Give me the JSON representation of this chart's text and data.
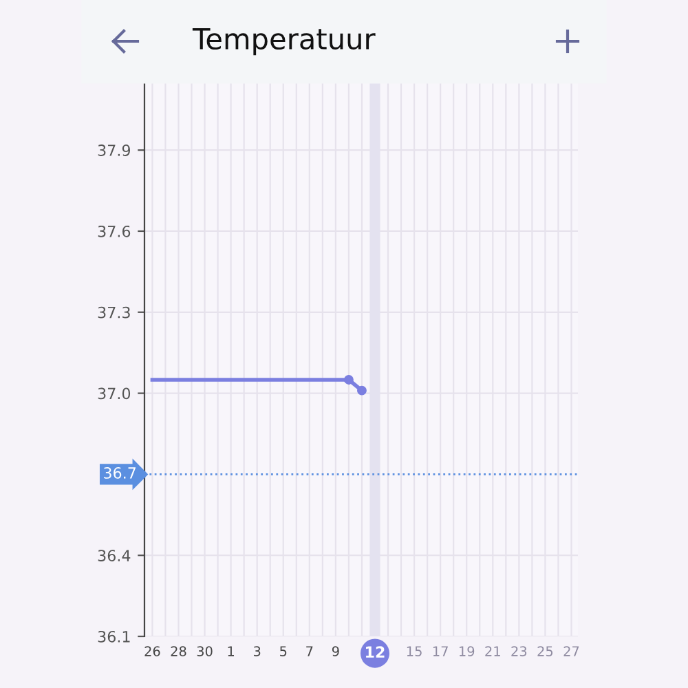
{
  "chart_data": {
    "type": "line",
    "title": "Temperatuur",
    "categories": [
      "26",
      null,
      "28",
      null,
      "30",
      null,
      "1",
      null,
      "3",
      null,
      "5",
      null,
      "7",
      null,
      "9",
      null,
      null,
      "12",
      null,
      null,
      "15",
      null,
      "17",
      null,
      "19",
      null,
      "21",
      null,
      "23",
      null,
      "25",
      null,
      "27"
    ],
    "series": [
      {
        "color": "#7b7fe0",
        "marker": "none",
        "values": [
          37.05,
          37.05,
          37.05,
          37.05,
          37.05,
          37.05,
          37.05,
          37.05,
          37.05,
          37.05,
          37.05,
          37.05,
          37.05,
          37.05,
          37.05,
          37.05,
          null,
          null,
          null,
          null,
          null,
          null,
          null,
          null,
          null,
          null,
          null,
          null,
          null,
          null,
          null,
          null,
          null
        ]
      },
      {
        "color": "#7b7fe0",
        "marker": "circle",
        "values": [
          null,
          null,
          null,
          null,
          null,
          null,
          null,
          null,
          null,
          null,
          null,
          null,
          null,
          null,
          null,
          37.05,
          37.01,
          null,
          null,
          null,
          null,
          null,
          null,
          null,
          null,
          null,
          null,
          null,
          null,
          null,
          null,
          null,
          null
        ]
      }
    ],
    "ylim": [
      36.1,
      38.15
    ],
    "yticks": [
      36.1,
      36.4,
      {
        "value": 37.0,
        "label": "37.0"
      },
      37.3,
      37.6,
      37.9
    ],
    "ref_lines": [
      {
        "axis": "y",
        "value": 36.7,
        "label": "36.7",
        "color": "#5b8fe0",
        "line_style": "dotted"
      }
    ],
    "bands": [
      {
        "axis": "x",
        "from": "12",
        "to": "12",
        "color": "#e4e2f0"
      }
    ],
    "grid": true
  }
}
